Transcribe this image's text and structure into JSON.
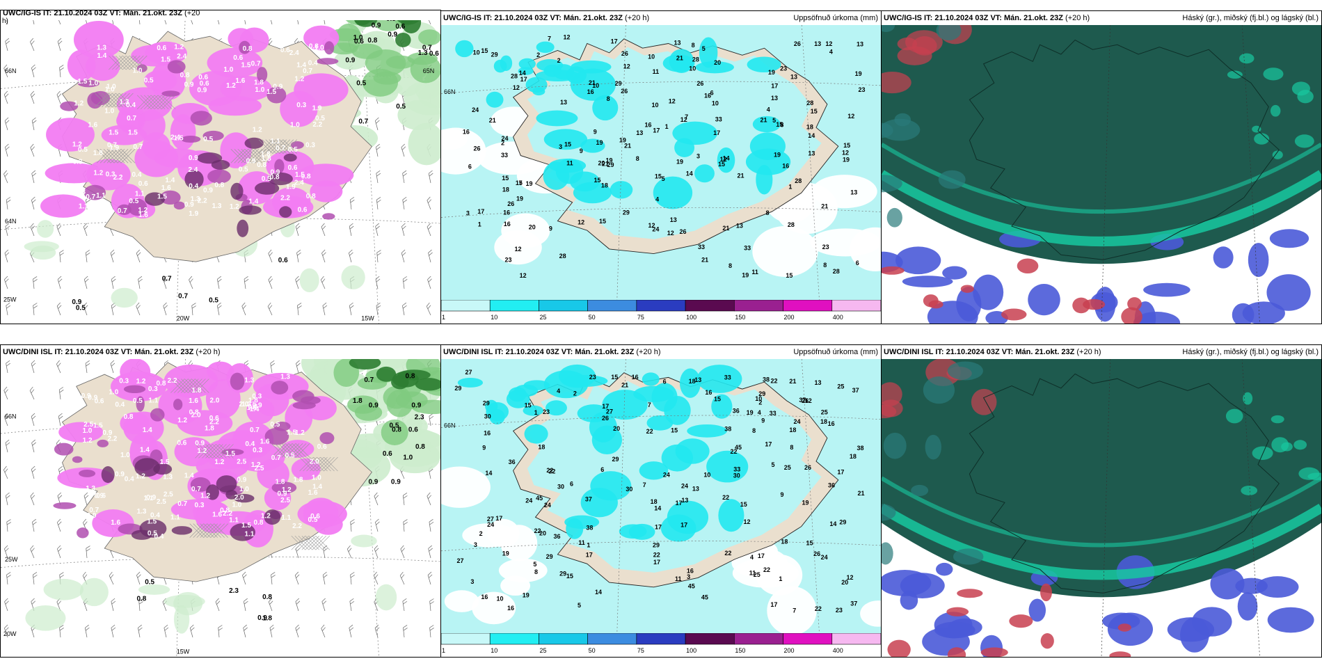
{
  "colors": {
    "snow_magenta": "#f27cf2",
    "snow_purple": "#b04fb0",
    "snow_dark": "#6a2d6a",
    "land_tan": "#eadfce",
    "rain_green_light": "#cdeccd",
    "rain_green": "#7fca7f",
    "rain_green_dark": "#2e7d32",
    "precip_light": "#b8f4f4",
    "precip_cyan": "#22e8f0",
    "cloud_high": "#1e5a4e",
    "cloud_teal": "#18c8a0",
    "cloud_blue": "#4a5ad8",
    "cloud_red": "#c84050"
  },
  "panels": {
    "ig_snow": {
      "title": "UWC/IG-IS IT: 21.10.2024 03Z",
      "vt": "VT: Mán. 21.okt. 23Z",
      "lead": "(+20",
      "lead2": "h)",
      "grid_labels": [
        "66N",
        "64N",
        "25W",
        "20W",
        "15W",
        "65N"
      ],
      "values": [
        "1.0",
        "1.5",
        "1.2",
        "0.8",
        "2.4",
        "1.6",
        "1.9",
        "1.4",
        "0.9",
        "0.7",
        "0.5",
        "0.3",
        "0.6",
        "1.1",
        "0.4",
        "1.3",
        "2.2",
        "0.8",
        "1.5",
        "1.0",
        "0.9",
        "0.6",
        "1.2",
        "1.8",
        "0.7",
        "0.5"
      ],
      "green_values": [
        "0.9",
        "0.7",
        "0.5",
        "0.7",
        "0.5",
        "0.6",
        "0.8",
        "1.3",
        "0.9",
        "0.5",
        "0.6",
        "1.0",
        "0.6"
      ]
    },
    "ig_precip": {
      "title": "UWC/IG-IS IT: 21.10.2024 03Z",
      "vt": "VT: Mán. 21.okt. 23Z",
      "lead": "(+20 h)",
      "right_title": "Uppsöfnuð úrkoma (mm)",
      "grid_label": "66N",
      "values": [
        "12",
        "15",
        "15",
        "19",
        "13",
        "28",
        "29",
        "26",
        "21",
        "33",
        "14",
        "16",
        "23",
        "19",
        "13",
        "15",
        "8",
        "12",
        "17",
        "18",
        "21",
        "19",
        "20",
        "26",
        "28",
        "24",
        "21",
        "17",
        "13",
        "16",
        "12",
        "11",
        "10",
        "8",
        "9",
        "7",
        "6",
        "5",
        "4",
        "3",
        "2",
        "1",
        "12",
        "10"
      ]
    },
    "ig_cloud": {
      "title": "UWC/IG-IS IT: 21.10.2024 03Z",
      "vt": "VT: Mán. 21.okt. 23Z",
      "lead": "(+20 h)",
      "right_title": "Háský (gr.), miðský (fj.bl.) og lágský (bl.)"
    },
    "dini_snow": {
      "title": "UWC/DINI ISL IT: 21.10.2024 03Z",
      "vt": "VT: Mán. 21.okt. 23Z",
      "lead": "(+20 h)",
      "grid_labels": [
        "66N",
        "25W",
        "20W",
        "15W"
      ],
      "values": [
        "1.6",
        "1.2",
        "1.3",
        "1.1",
        "1.5",
        "0.9",
        "1.0",
        "0.8",
        "2.5",
        "0.6",
        "0.4",
        "0.5",
        "1.4",
        "0.7",
        "1.2",
        "2.0",
        "0.3",
        "1.8",
        "2.2",
        "0.9"
      ],
      "green_values": [
        "1.8",
        "2.3",
        "0.8",
        "0.8",
        "0.9",
        "0.5",
        "0.6",
        "0.9",
        "0.8",
        "0.9",
        "1.0",
        "0.7",
        "0.6",
        "0.9",
        "0.5",
        "0.9"
      ]
    },
    "dini_precip": {
      "title": "UWC/DINI ISL IT: 21.10.2024 03Z",
      "vt": "VT: Mán. 21.okt. 23Z",
      "lead": "(+20 h)",
      "right_title": "Uppsöfnuð úrkoma (mm)",
      "grid_label": "66N",
      "values": [
        "16",
        "17",
        "17",
        "15",
        "18",
        "22",
        "27",
        "26",
        "19",
        "37",
        "29",
        "38",
        "45",
        "36",
        "22",
        "24",
        "30",
        "25",
        "29",
        "13",
        "14",
        "17",
        "18",
        "22",
        "23",
        "24",
        "15",
        "16",
        "12",
        "10",
        "9",
        "8",
        "7",
        "6",
        "5",
        "4",
        "3",
        "2",
        "1",
        "33",
        "21",
        "20",
        "11"
      ]
    },
    "dini_cloud": {
      "title": "UWC/DINI ISL IT: 21.10.2024 03Z",
      "vt": "VT: Mán. 21.okt. 23Z",
      "lead": "(+20 h)",
      "right_title": "Háský (gr.), miðský (fj.bl.) og lágský (bl.)"
    }
  },
  "colorbar": {
    "ticks": [
      "1",
      "10",
      "25",
      "50",
      "75",
      "100",
      "150",
      "200",
      "400"
    ],
    "colors": [
      "#c8f8f8",
      "#22eef2",
      "#18c8e8",
      "#3c8ce0",
      "#2a3cc0",
      "#5a0a50",
      "#9a2090",
      "#e010c0",
      "#f6b8f0"
    ]
  }
}
